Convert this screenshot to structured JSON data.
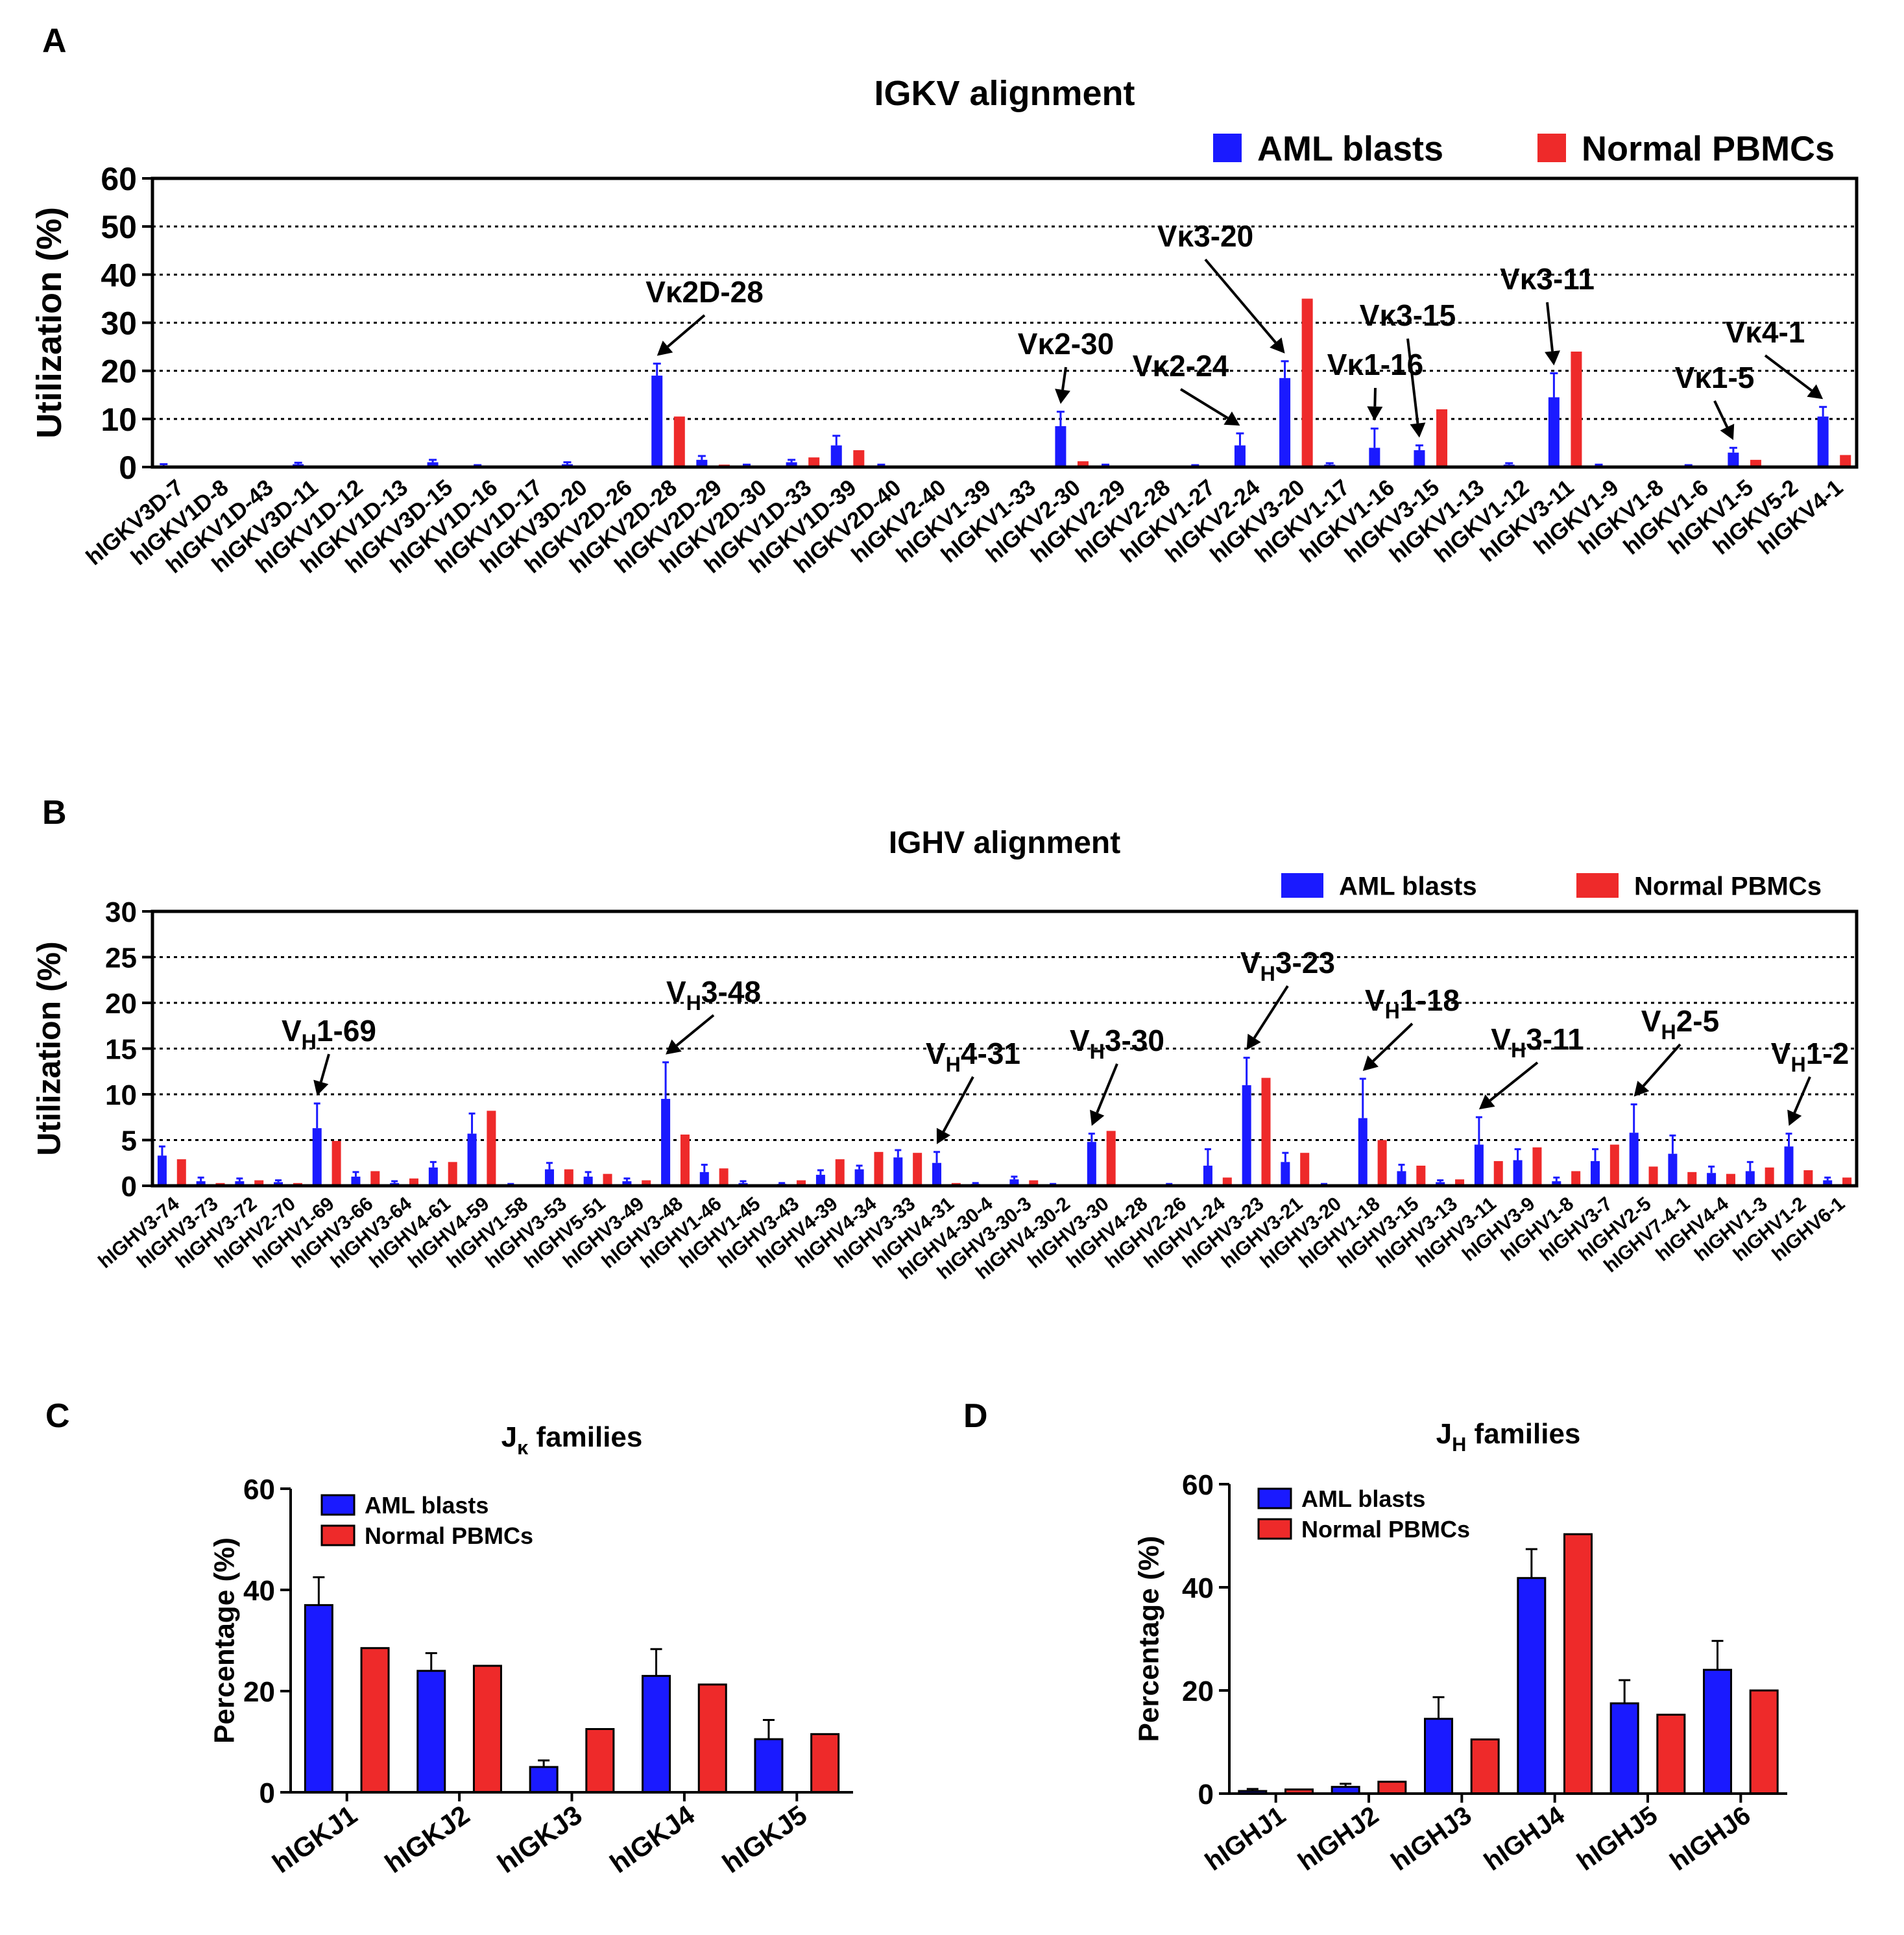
{
  "colors": {
    "aml": "#1a1aff",
    "pbmc": "#ee2a2a",
    "axis": "#000000",
    "grid": "#000000"
  },
  "chart_data": [
    {
      "panel": "A",
      "type": "bar",
      "title": "IGKV alignment",
      "ylabel": "Utilization (%)",
      "ylim": [
        0,
        60
      ],
      "yticks": [
        0,
        10,
        20,
        30,
        40,
        50,
        60
      ],
      "grid": true,
      "legend_position": "top-right",
      "categories": [
        "hIGKV3D-7",
        "hIGKV1D-8",
        "hIGKV1D-43",
        "hIGKV3D-11",
        "hIGKV1D-12",
        "hIGKV1D-13",
        "hIGKV3D-15",
        "hIGKV1D-16",
        "hIGKV1D-17",
        "hIGKV3D-20",
        "hIGKV2D-26",
        "hIGKV2D-28",
        "hIGKV2D-29",
        "hIGKV2D-30",
        "hIGKV1D-33",
        "hIGKV1D-39",
        "hIGKV2D-40",
        "hIGKV2-40",
        "hIGKV1-39",
        "hIGKV1-33",
        "hIGKV2-30",
        "hIGKV2-29",
        "hIGKV2-28",
        "hIGKV1-27",
        "hIGKV2-24",
        "hIGKV3-20",
        "hIGKV1-17",
        "hIGKV1-16",
        "hIGKV3-15",
        "hIGKV1-13",
        "hIGKV1-12",
        "hIGKV3-11",
        "hIGKV1-9",
        "hIGKV1-8",
        "hIGKV1-6",
        "hIGKV1-5",
        "hIGKV5-2",
        "hIGKV4-1"
      ],
      "series": [
        {
          "name": "AML blasts",
          "values": [
            0.3,
            0,
            0,
            0.6,
            0,
            0,
            1.0,
            0.2,
            0,
            0.6,
            0,
            19,
            1.5,
            0.3,
            1.0,
            4.5,
            0.3,
            0,
            0,
            0,
            8.5,
            0.3,
            0,
            0.2,
            4.5,
            18.5,
            0.5,
            4.0,
            3.5,
            0,
            0.5,
            14.5,
            0.3,
            0,
            0.2,
            3.0,
            0,
            10.5
          ],
          "errors": [
            0.3,
            0,
            0,
            0.3,
            0,
            0,
            0.5,
            0.2,
            0,
            0.4,
            0,
            2.5,
            0.8,
            0.2,
            0.5,
            2.0,
            0.2,
            0,
            0,
            0,
            3.0,
            0.2,
            0,
            0.2,
            2.5,
            3.5,
            0.3,
            4.0,
            1.0,
            0,
            0.3,
            5.0,
            0.2,
            0,
            0.2,
            1.0,
            0,
            2.0
          ]
        },
        {
          "name": "Normal PBMCs",
          "values": [
            0,
            0,
            0,
            0,
            0,
            0,
            0.3,
            0,
            0,
            0,
            0,
            10.5,
            0.5,
            0,
            2.0,
            3.5,
            0.3,
            0,
            0,
            0,
            1.2,
            0,
            0,
            0,
            0,
            35,
            0,
            0,
            12,
            0,
            0,
            24,
            0,
            0,
            0,
            1.5,
            0,
            2.5
          ],
          "errors": [
            0,
            0,
            0,
            0,
            0,
            0,
            0,
            0,
            0,
            0,
            0,
            0,
            0,
            0,
            0,
            0,
            0,
            0,
            0,
            0,
            0,
            0,
            0,
            0,
            0,
            0,
            0,
            0,
            0,
            0,
            0,
            0,
            0,
            0,
            0,
            0,
            0,
            0
          ]
        }
      ],
      "annotations": [
        {
          "label": "Vκ2D-28",
          "category": "hIGKV2D-28"
        },
        {
          "label": "Vκ2-30",
          "category": "hIGKV2-30"
        },
        {
          "label": "Vκ2-24",
          "category": "hIGKV2-24"
        },
        {
          "label": "Vκ3-20",
          "category": "hIGKV3-20"
        },
        {
          "label": "Vκ1-16",
          "category": "hIGKV1-16"
        },
        {
          "label": "Vκ3-15",
          "category": "hIGKV3-15"
        },
        {
          "label": "Vκ3-11",
          "category": "hIGKV3-11"
        },
        {
          "label": "Vκ1-5",
          "category": "hIGKV1-5"
        },
        {
          "label": "Vκ4-1",
          "category": "hIGKV4-1"
        }
      ]
    },
    {
      "panel": "B",
      "type": "bar",
      "title": "IGHV alignment",
      "ylabel": "Utilization (%)",
      "ylim": [
        0,
        30
      ],
      "yticks": [
        0,
        5,
        10,
        15,
        20,
        25,
        30
      ],
      "grid": true,
      "legend_position": "top-right",
      "categories": [
        "hIGHV3-74",
        "hIGHV3-73",
        "hIGHV3-72",
        "hIGHV2-70",
        "hIGHV1-69",
        "hIGHV3-66",
        "hIGHV3-64",
        "hIGHV4-61",
        "hIGHV4-59",
        "hIGHV1-58",
        "hIGHV3-53",
        "hIGHV5-51",
        "hIGHV3-49",
        "hIGHV3-48",
        "hIGHV1-46",
        "hIGHV1-45",
        "hIGHV3-43",
        "hIGHV4-39",
        "hIGHV4-34",
        "hIGHV3-33",
        "hIGHV4-31",
        "hIGHV4-30-4",
        "hIGHV3-30-3",
        "hIGHV4-30-2",
        "hIGHV3-30",
        "hIGHV4-28",
        "hIGHV2-26",
        "hIGHV1-24",
        "hIGHV3-23",
        "hIGHV3-21",
        "hIGHV3-20",
        "hIGHV1-18",
        "hIGHV3-15",
        "hIGHV3-13",
        "hIGHV3-11",
        "hIGHV3-9",
        "hIGHV1-8",
        "hIGHV3-7",
        "hIGHV2-5",
        "hIGHV7-4-1",
        "hIGHV4-4",
        "hIGHV1-3",
        "hIGHV1-2",
        "hIGHV6-1"
      ],
      "series": [
        {
          "name": "AML blasts",
          "values": [
            3.3,
            0.5,
            0.5,
            0.4,
            6.3,
            1.0,
            0.3,
            2.0,
            5.7,
            0.1,
            1.8,
            1.0,
            0.5,
            9.5,
            1.5,
            0.3,
            0.2,
            1.2,
            1.8,
            3.1,
            2.5,
            0.2,
            0.7,
            0.1,
            4.8,
            0,
            0.1,
            2.2,
            11.0,
            2.6,
            0.1,
            7.4,
            1.6,
            0.4,
            4.5,
            2.8,
            0.5,
            2.7,
            5.8,
            3.5,
            1.4,
            1.6,
            4.3,
            0.6
          ],
          "errors": [
            1.0,
            0.4,
            0.3,
            0.2,
            2.7,
            0.5,
            0.2,
            0.6,
            2.2,
            0.1,
            0.7,
            0.5,
            0.3,
            4.0,
            0.8,
            0.2,
            0.1,
            0.5,
            0.4,
            0.8,
            1.2,
            0.1,
            0.3,
            0.1,
            0.9,
            0,
            0.1,
            1.8,
            3.0,
            1.0,
            0.1,
            4.3,
            0.7,
            0.2,
            3.0,
            1.2,
            0.4,
            1.3,
            3.1,
            2.0,
            0.7,
            1.0,
            1.4,
            0.3
          ]
        },
        {
          "name": "Normal PBMCs",
          "values": [
            2.9,
            0.3,
            0.6,
            0.3,
            4.9,
            1.6,
            0.8,
            2.6,
            8.2,
            0,
            1.8,
            1.3,
            0.6,
            5.6,
            1.9,
            0,
            0.6,
            2.9,
            3.7,
            3.6,
            0.3,
            0,
            0.6,
            0.1,
            6.0,
            0,
            0,
            0.9,
            11.8,
            3.6,
            0,
            5.0,
            2.2,
            0.7,
            2.7,
            4.2,
            1.6,
            4.5,
            2.1,
            1.5,
            1.3,
            2.0,
            1.7,
            0.9
          ],
          "errors": [
            0,
            0,
            0,
            0,
            0,
            0,
            0,
            0,
            0,
            0,
            0,
            0,
            0,
            0,
            0,
            0,
            0,
            0,
            0,
            0,
            0,
            0,
            0,
            0,
            0,
            0,
            0,
            0,
            0,
            0,
            0,
            0,
            0,
            0,
            0,
            0,
            0,
            0,
            0,
            0,
            0,
            0,
            0,
            0
          ]
        }
      ],
      "annotations": [
        {
          "label_main": "V",
          "label_sub": "H",
          "label_rest": "1-69",
          "category": "hIGHV1-69"
        },
        {
          "label_main": "V",
          "label_sub": "H",
          "label_rest": "3-48",
          "category": "hIGHV3-48"
        },
        {
          "label_main": "V",
          "label_sub": "H",
          "label_rest": "4-31",
          "category": "hIGHV4-31"
        },
        {
          "label_main": "V",
          "label_sub": "H",
          "label_rest": "3-30",
          "category": "hIGHV3-30"
        },
        {
          "label_main": "V",
          "label_sub": "H",
          "label_rest": "3-23",
          "category": "hIGHV3-23"
        },
        {
          "label_main": "V",
          "label_sub": "H",
          "label_rest": "1-18",
          "category": "hIGHV1-18"
        },
        {
          "label_main": "V",
          "label_sub": "H",
          "label_rest": "3-11",
          "category": "hIGHV3-11"
        },
        {
          "label_main": "V",
          "label_sub": "H",
          "label_rest": "2-5",
          "category": "hIGHV2-5"
        },
        {
          "label_main": "V",
          "label_sub": "H",
          "label_rest": "1-2",
          "category": "hIGHV1-2"
        }
      ]
    },
    {
      "panel": "C",
      "type": "bar",
      "title_main": "J",
      "title_sub": "κ",
      "title_rest": " families",
      "ylabel": "Percentage (%)",
      "ylim": [
        0,
        60
      ],
      "yticks": [
        0,
        20,
        40,
        60
      ],
      "grid": false,
      "legend_position": "top-left",
      "categories": [
        "hIGKJ1",
        "hIGKJ2",
        "hIGKJ3",
        "hIGKJ4",
        "hIGKJ5"
      ],
      "series": [
        {
          "name": "AML blasts",
          "values": [
            37,
            24,
            5,
            23,
            10.5
          ],
          "errors": [
            5.5,
            3.5,
            1.3,
            5.3,
            3.8
          ]
        },
        {
          "name": "Normal PBMCs",
          "values": [
            28.5,
            25,
            12.5,
            21.3,
            11.5
          ],
          "errors": [
            0,
            0,
            0,
            0,
            0
          ]
        }
      ]
    },
    {
      "panel": "D",
      "type": "bar",
      "title_main": "J",
      "title_sub": "H",
      "title_rest": " families",
      "ylabel": "Percentage (%)",
      "ylim": [
        0,
        60
      ],
      "yticks": [
        0,
        20,
        40,
        60
      ],
      "grid": false,
      "legend_position": "top-left",
      "categories": [
        "hIGHJ1",
        "hIGHJ2",
        "hIGHJ3",
        "hIGHJ4",
        "hIGHJ5",
        "hIGHJ6"
      ],
      "series": [
        {
          "name": "AML blasts",
          "values": [
            0.5,
            1.3,
            14.5,
            41.8,
            17.5,
            24
          ],
          "errors": [
            0.4,
            0.6,
            4.2,
            5.6,
            4.5,
            5.6
          ]
        },
        {
          "name": "Normal PBMCs",
          "values": [
            0.8,
            2.3,
            10.5,
            50.3,
            15.3,
            20
          ],
          "errors": [
            0,
            0,
            0,
            0,
            0,
            0
          ]
        }
      ]
    }
  ]
}
